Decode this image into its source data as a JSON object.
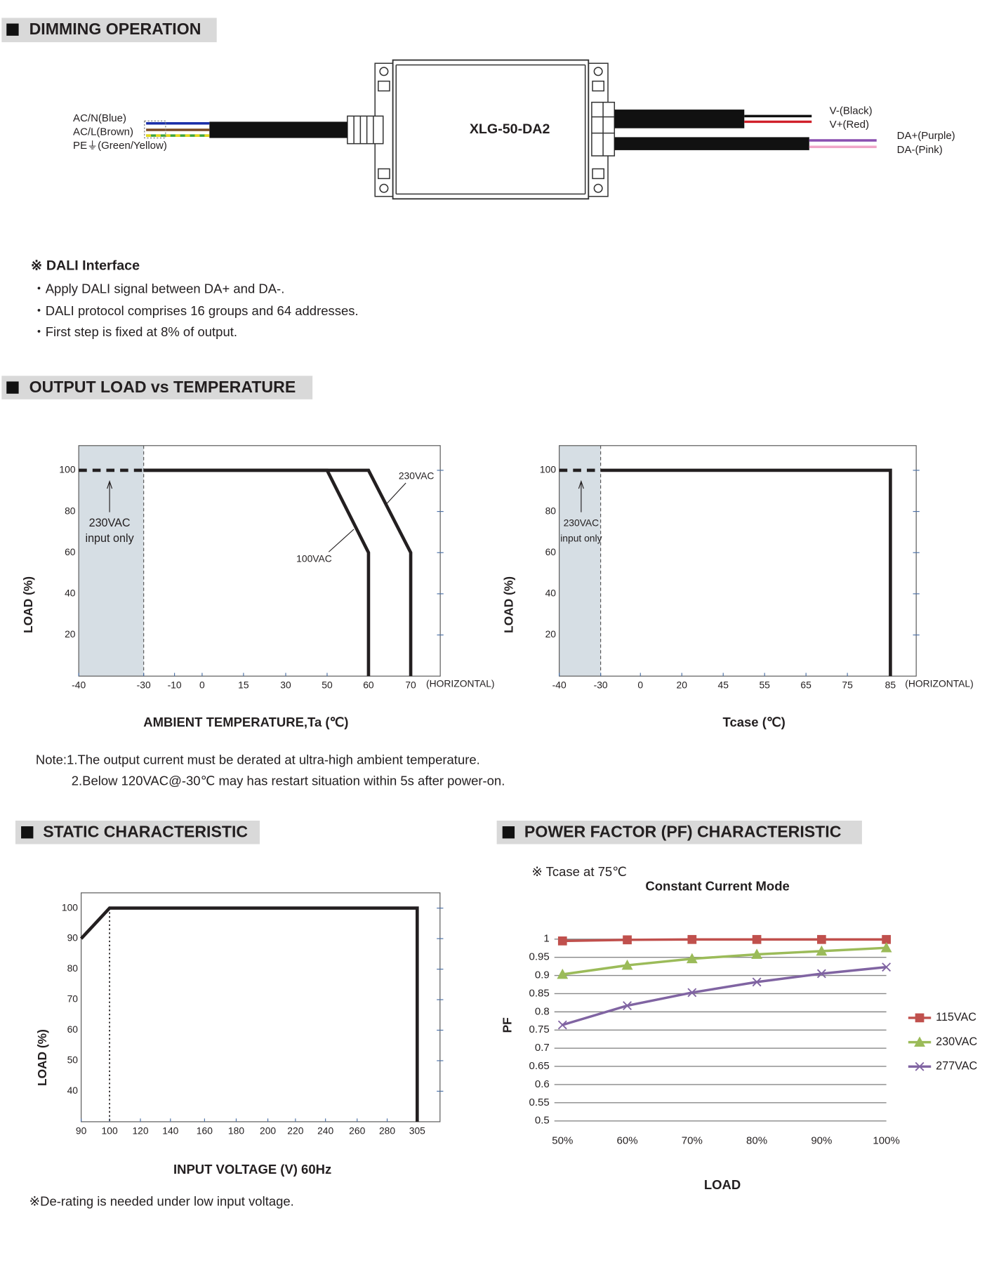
{
  "dimming": {
    "title": "DIMMING OPERATION",
    "model": "XLG-50-DA2",
    "input_wires": [
      "AC/N(Blue)",
      "AC/L(Brown)",
      "PE⏚(Green/Yellow)"
    ],
    "output_wires": [
      "V-(Black)",
      "V+(Red)"
    ],
    "dali_wires": [
      "DA+(Purple)",
      "DA-(Pink)"
    ],
    "dali_heading": "※ DALI Interface",
    "dali_items": [
      "・Apply DALI signal between DA+ and DA-.",
      "・DALI protocol comprises 16 groups and 64 addresses.",
      "・First step is fixed at 8% of output."
    ]
  },
  "output_load": {
    "title": "OUTPUT LOAD vs TEMPERATURE",
    "notes": [
      "Note:1.The output current must be derated at ultra-high ambient temperature.",
      "2.Below 120VAC@-30℃ may has restart situation within 5s after power-on."
    ]
  },
  "static": {
    "title": "STATIC CHARACTERISTIC",
    "note": "※De-rating is needed under low input voltage."
  },
  "power_factor": {
    "title": "POWER FACTOR (PF) CHARACTERISTIC"
  },
  "chart_data": [
    {
      "type": "line",
      "y_label": "LOAD (%)",
      "x_label": "AMBIENT TEMPERATURE,Ta (℃)",
      "x_axis_note": "(HORIZONTAL)",
      "xlim": [
        -40,
        77
      ],
      "xticks": [
        -40,
        -30,
        -10,
        0,
        15,
        30,
        50,
        60,
        70
      ],
      "ylim": [
        0,
        112
      ],
      "yticks": [
        20,
        40,
        60,
        80,
        100
      ],
      "shade": [
        -40,
        -30
      ],
      "shade_color": "#d6dee4",
      "shade_label": [
        "230VAC",
        "input only"
      ],
      "color": "#231f20",
      "series": [
        {
          "x": [
            -40,
            -30
          ],
          "values": [
            100,
            100
          ],
          "dash": true
        },
        {
          "name": "230VAC",
          "x": [
            -30,
            60,
            70,
            70
          ],
          "values": [
            100,
            100,
            60,
            0
          ]
        },
        {
          "name": "100VAC",
          "x": [
            -30,
            50,
            60,
            60
          ],
          "values": [
            100,
            100,
            60,
            0
          ]
        }
      ]
    },
    {
      "type": "line",
      "y_label": "LOAD (%)",
      "x_label": "Tcase (℃)",
      "x_axis_note": "(HORIZONTAL)",
      "xlim": [
        -40,
        91
      ],
      "xticks": [
        -40,
        -30,
        0,
        20,
        45,
        55,
        65,
        75,
        85
      ],
      "ylim": [
        0,
        112
      ],
      "yticks": [
        20,
        40,
        60,
        80,
        100
      ],
      "shade": [
        -40,
        -30
      ],
      "shade_color": "#d6dee4",
      "shade_label": [
        "230VAC",
        "input only"
      ],
      "color": "#231f20",
      "series": [
        {
          "x": [
            -40,
            -30
          ],
          "values": [
            100,
            100
          ],
          "dash": true
        },
        {
          "x": [
            -30,
            85,
            85
          ],
          "values": [
            100,
            100,
            0
          ]
        }
      ]
    },
    {
      "type": "line",
      "y_label": "LOAD (%)",
      "x_label": "INPUT VOLTAGE (V) 60Hz",
      "xlim": [
        90,
        324
      ],
      "xticks": [
        90,
        100,
        120,
        140,
        160,
        180,
        200,
        220,
        240,
        260,
        280,
        305
      ],
      "ylim": [
        30,
        105
      ],
      "yticks": [
        40,
        50,
        60,
        70,
        80,
        90,
        100
      ],
      "vline": 100,
      "color": "#231f20",
      "series": [
        {
          "x": [
            90,
            100,
            305,
            305
          ],
          "values": [
            90,
            100,
            100,
            30
          ]
        }
      ]
    },
    {
      "type": "line",
      "title": "Constant Current Mode",
      "subtitle": "※ Tcase at 75℃",
      "y_label": "PF",
      "x_label": "LOAD",
      "categories": [
        "50%",
        "60%",
        "70%",
        "80%",
        "90%",
        "100%"
      ],
      "ylim": [
        0.5,
        1
      ],
      "yticks": [
        0.5,
        0.55,
        0.6,
        0.65,
        0.7,
        0.75,
        0.8,
        0.85,
        0.9,
        0.95,
        1
      ],
      "grid": true,
      "legend": "right",
      "series": [
        {
          "name": "115VAC",
          "color": "#c0504d",
          "marker": "square",
          "values": [
            0.995,
            0.998,
            0.999,
            0.999,
            0.999,
            0.999
          ]
        },
        {
          "name": "230VAC",
          "color": "#9bbb59",
          "marker": "triangle",
          "values": [
            0.903,
            0.928,
            0.946,
            0.958,
            0.967,
            0.976
          ]
        },
        {
          "name": "277VAC",
          "color": "#8064a2",
          "marker": "x",
          "values": [
            0.764,
            0.817,
            0.853,
            0.882,
            0.905,
            0.923
          ]
        }
      ]
    }
  ]
}
